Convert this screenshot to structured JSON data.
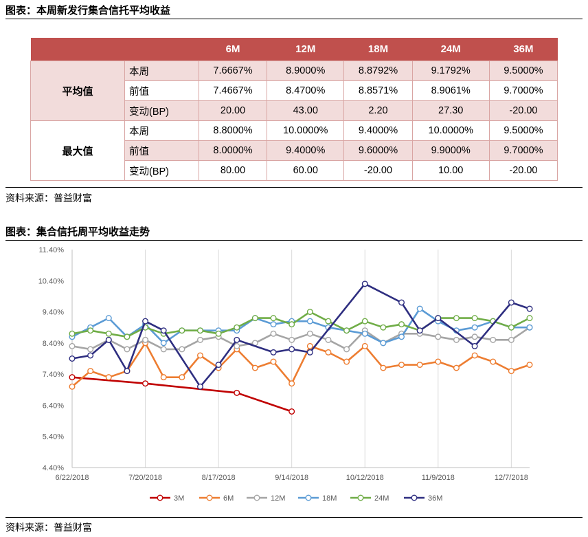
{
  "table_title": "图表：本周新发行集合信托平均收益",
  "table_source": "资料来源：普益财富",
  "table": {
    "columns": [
      "6M",
      "12M",
      "18M",
      "24M",
      "36M"
    ],
    "groups": [
      {
        "name": "平均值",
        "rows": [
          {
            "label": "本周",
            "values": [
              "7.6667%",
              "8.9000%",
              "8.8792%",
              "9.1792%",
              "9.5000%"
            ]
          },
          {
            "label": "前值",
            "values": [
              "7.4667%",
              "8.4700%",
              "8.8571%",
              "8.9061%",
              "9.7000%"
            ]
          },
          {
            "label": "变动(BP)",
            "values": [
              "20.00",
              "43.00",
              "2.20",
              "27.30",
              "-20.00"
            ]
          }
        ]
      },
      {
        "name": "最大值",
        "rows": [
          {
            "label": "本周",
            "values": [
              "8.8000%",
              "10.0000%",
              "9.4000%",
              "10.0000%",
              "9.5000%"
            ]
          },
          {
            "label": "前值",
            "values": [
              "8.0000%",
              "9.4000%",
              "9.6000%",
              "9.9000%",
              "9.7000%"
            ]
          },
          {
            "label": "变动(BP)",
            "values": [
              "80.00",
              "60.00",
              "-20.00",
              "10.00",
              "-20.00"
            ]
          }
        ]
      }
    ],
    "colors": {
      "header": "#c0504d",
      "pink": "#f2dcdb",
      "border": "#d9a5a3"
    }
  },
  "chart_title": "图表：集合信托周平均收益走势",
  "chart_source": "资料来源：普益财富",
  "chart_data": {
    "type": "line",
    "x": [
      "6/22/2018",
      "6/29/2018",
      "7/6/2018",
      "7/13/2018",
      "7/20/2018",
      "7/27/2018",
      "8/3/2018",
      "8/10/2018",
      "8/17/2018",
      "8/24/2018",
      "8/31/2018",
      "9/7/2018",
      "9/14/2018",
      "9/21/2018",
      "9/28/2018",
      "10/5/2018",
      "10/12/2018",
      "10/19/2018",
      "10/26/2018",
      "11/2/2018",
      "11/9/2018",
      "11/16/2018",
      "11/23/2018",
      "11/30/2018",
      "12/7/2018",
      "12/14/2018"
    ],
    "x_tick_labels": [
      "6/22/2018",
      "7/20/2018",
      "8/17/2018",
      "9/14/2018",
      "10/12/2018",
      "11/9/2018",
      "12/7/2018"
    ],
    "y_tick_labels": [
      "4.40%",
      "5.40%",
      "6.40%",
      "7.40%",
      "8.40%",
      "9.40%",
      "10.40%",
      "11.40%"
    ],
    "ylim": [
      4.4,
      11.4
    ],
    "grid": "vertical",
    "legend_position": "bottom",
    "series": [
      {
        "name": "3M",
        "color": "#c00000",
        "points": [
          [
            0,
            7.3
          ],
          [
            4,
            7.1
          ],
          [
            9,
            6.8
          ],
          [
            12,
            6.2
          ]
        ]
      },
      {
        "name": "6M",
        "color": "#ed7d31",
        "points": [
          [
            0,
            7.0
          ],
          [
            1,
            7.5
          ],
          [
            2,
            7.3
          ],
          [
            3,
            7.5
          ],
          [
            4,
            8.4
          ],
          [
            5,
            7.3
          ],
          [
            6,
            7.3
          ],
          [
            7,
            8.0
          ],
          [
            8,
            7.6
          ],
          [
            9,
            8.2
          ],
          [
            10,
            7.6
          ],
          [
            11,
            7.8
          ],
          [
            12,
            7.1
          ],
          [
            13,
            8.3
          ],
          [
            14,
            8.1
          ],
          [
            15,
            7.8
          ],
          [
            16,
            8.3
          ],
          [
            17,
            7.6
          ],
          [
            18,
            7.7
          ],
          [
            19,
            7.7
          ],
          [
            20,
            7.8
          ],
          [
            21,
            7.6
          ],
          [
            22,
            8.0
          ],
          [
            23,
            7.8
          ],
          [
            24,
            7.5
          ],
          [
            25,
            7.7
          ]
        ]
      },
      {
        "name": "12M",
        "color": "#a5a5a5",
        "points": [
          [
            0,
            8.3
          ],
          [
            1,
            8.2
          ],
          [
            2,
            8.5
          ],
          [
            3,
            8.2
          ],
          [
            4,
            8.5
          ],
          [
            5,
            8.2
          ],
          [
            6,
            8.2
          ],
          [
            7,
            8.5
          ],
          [
            8,
            8.6
          ],
          [
            9,
            8.3
          ],
          [
            10,
            8.4
          ],
          [
            11,
            8.7
          ],
          [
            12,
            8.5
          ],
          [
            13,
            8.7
          ],
          [
            14,
            8.5
          ],
          [
            15,
            8.2
          ],
          [
            16,
            8.8
          ],
          [
            17,
            8.4
          ],
          [
            18,
            8.7
          ],
          [
            19,
            8.7
          ],
          [
            20,
            8.6
          ],
          [
            21,
            8.5
          ],
          [
            22,
            8.6
          ],
          [
            23,
            8.5
          ],
          [
            24,
            8.5
          ],
          [
            25,
            8.9
          ]
        ]
      },
      {
        "name": "18M",
        "color": "#5b9bd5",
        "points": [
          [
            0,
            8.6
          ],
          [
            1,
            8.9
          ],
          [
            2,
            9.2
          ],
          [
            3,
            8.6
          ],
          [
            4,
            9.0
          ],
          [
            5,
            8.4
          ],
          [
            6,
            8.8
          ],
          [
            7,
            8.8
          ],
          [
            8,
            8.8
          ],
          [
            9,
            8.8
          ],
          [
            10,
            9.2
          ],
          [
            11,
            9.0
          ],
          [
            12,
            9.1
          ],
          [
            13,
            9.1
          ],
          [
            14,
            8.9
          ],
          [
            15,
            8.8
          ],
          [
            16,
            8.7
          ],
          [
            17,
            8.4
          ],
          [
            18,
            8.6
          ],
          [
            19,
            9.5
          ],
          [
            20,
            9.1
          ],
          [
            21,
            8.8
          ],
          [
            22,
            8.9
          ],
          [
            23,
            9.1
          ],
          [
            24,
            8.9
          ],
          [
            25,
            8.9
          ]
        ]
      },
      {
        "name": "24M",
        "color": "#70ad47",
        "points": [
          [
            0,
            8.7
          ],
          [
            1,
            8.8
          ],
          [
            2,
            8.7
          ],
          [
            3,
            8.6
          ],
          [
            4,
            8.9
          ],
          [
            5,
            8.7
          ],
          [
            6,
            8.8
          ],
          [
            7,
            8.8
          ],
          [
            8,
            8.7
          ],
          [
            9,
            8.9
          ],
          [
            10,
            9.2
          ],
          [
            11,
            9.2
          ],
          [
            12,
            9.0
          ],
          [
            13,
            9.4
          ],
          [
            14,
            9.1
          ],
          [
            15,
            8.8
          ],
          [
            16,
            9.1
          ],
          [
            17,
            8.9
          ],
          [
            18,
            9.0
          ],
          [
            19,
            8.8
          ],
          [
            20,
            9.2
          ],
          [
            21,
            9.2
          ],
          [
            22,
            9.2
          ],
          [
            23,
            9.1
          ],
          [
            24,
            8.9
          ],
          [
            25,
            9.2
          ]
        ]
      },
      {
        "name": "36M",
        "color": "#2e2e80",
        "points": [
          [
            0,
            7.9
          ],
          [
            1,
            8.0
          ],
          [
            2,
            8.5
          ],
          [
            3,
            7.5
          ],
          [
            4,
            9.1
          ],
          [
            5,
            8.8
          ],
          [
            7,
            7.0
          ],
          [
            8,
            7.7
          ],
          [
            9,
            8.5
          ],
          [
            11,
            8.1
          ],
          [
            12,
            8.2
          ],
          [
            13,
            8.1
          ],
          [
            16,
            10.3
          ],
          [
            18,
            9.7
          ],
          [
            19,
            8.8
          ],
          [
            20,
            9.2
          ],
          [
            22,
            8.3
          ],
          [
            24,
            9.7
          ],
          [
            25,
            9.5
          ]
        ]
      }
    ]
  }
}
